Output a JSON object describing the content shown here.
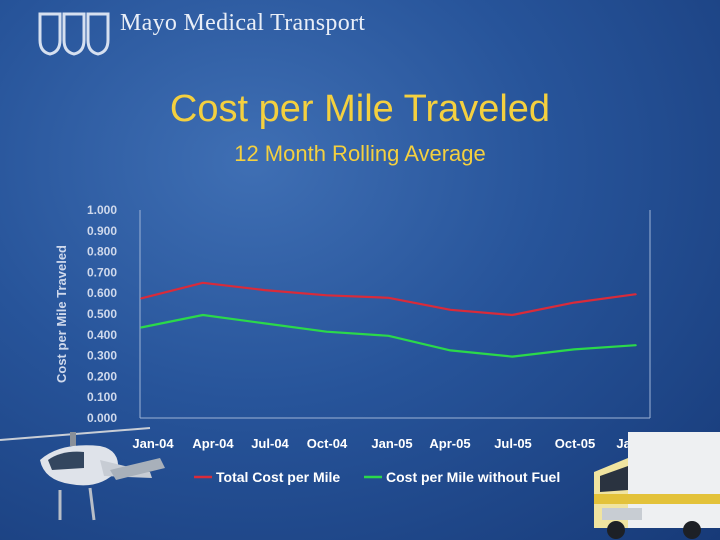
{
  "header": {
    "brand": "Mayo Medical Transport"
  },
  "colors": {
    "background": "#27549a",
    "title": "#f4d03f",
    "series_total": "#d92b3a",
    "series_nofuel": "#2bd94a"
  },
  "chart_data": {
    "type": "line",
    "title": "Cost per Mile Traveled",
    "subtitle": "12 Month Rolling Average",
    "ylabel": "Cost per Mile Traveled",
    "xlabel": "",
    "ylim": [
      0,
      1.0
    ],
    "y_ticks": [
      "0.000",
      "0.100",
      "0.200",
      "0.300",
      "0.400",
      "0.500",
      "0.600",
      "0.700",
      "0.800",
      "0.900",
      "1.000"
    ],
    "x_tick_labels": [
      "Jan-04",
      "Apr-04",
      "Jul-04",
      "Oct-04",
      "Jan-05",
      "Apr-05",
      "Jul-05",
      "Oct-05",
      "Jan-06"
    ],
    "x": [
      "Jan-04",
      "Apr-04",
      "Jul-04",
      "Oct-04",
      "Jan-05",
      "Apr-05",
      "Jul-05",
      "Oct-05",
      "Jan-06"
    ],
    "series": [
      {
        "name": "Total Cost per Mile",
        "color": "#d92b3a",
        "values": [
          0.575,
          0.65,
          0.615,
          0.59,
          0.578,
          0.52,
          0.495,
          0.555,
          0.595
        ]
      },
      {
        "name": "Cost per Mile without Fuel",
        "color": "#2bd94a",
        "values": [
          0.435,
          0.495,
          0.455,
          0.415,
          0.395,
          0.325,
          0.295,
          0.33,
          0.35
        ]
      }
    ],
    "legend": "bottom",
    "grid": false
  }
}
